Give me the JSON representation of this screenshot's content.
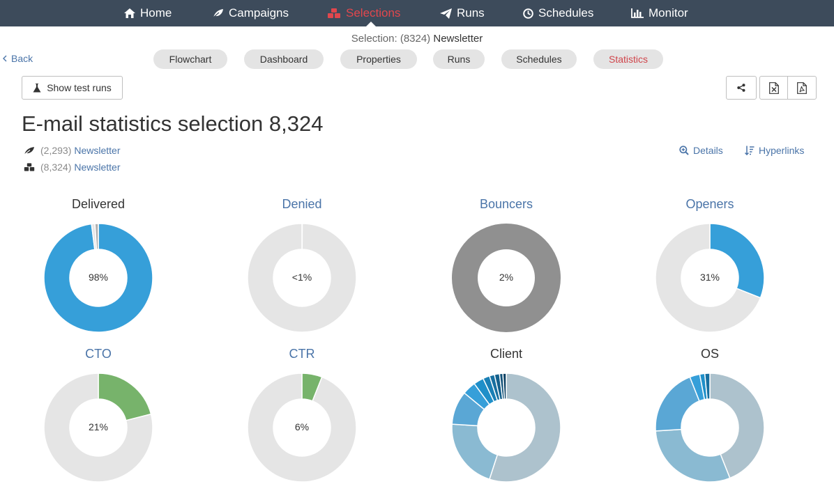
{
  "nav": {
    "items": [
      {
        "label": "Home",
        "icon": "home-icon"
      },
      {
        "label": "Campaigns",
        "icon": "leaf-icon"
      },
      {
        "label": "Selections",
        "icon": "cubes-icon"
      },
      {
        "label": "Runs",
        "icon": "paper-plane-icon"
      },
      {
        "label": "Schedules",
        "icon": "clock-icon"
      },
      {
        "label": "Monitor",
        "icon": "bar-chart-icon"
      }
    ],
    "active": "Selections",
    "active_color": "#e2474d",
    "background": "#3d4b5b"
  },
  "subheader": {
    "selection_prefix": "Selection: (8324)",
    "selection_name": "Newsletter",
    "back_label": "Back",
    "tabs": [
      "Flowchart",
      "Dashboard",
      "Properties",
      "Runs",
      "Schedules",
      "Statistics"
    ],
    "active_tab": "Statistics"
  },
  "toolbar": {
    "test_runs_label": "Show test runs",
    "share_icon": "share-icon",
    "excel_icon": "excel-file-icon",
    "pdf_icon": "pdf-file-icon"
  },
  "page": {
    "title": "E-mail statistics selection 8,324",
    "sources": [
      {
        "icon": "leaf-icon",
        "count": "(2,293)",
        "name": "Newsletter"
      },
      {
        "icon": "cubes-icon",
        "count": "(8,324)",
        "name": "Newsletter"
      }
    ],
    "details_label": "Details",
    "hyperlinks_label": "Hyperlinks"
  },
  "colors": {
    "link": "#4a74a8",
    "blue": "#369fd9",
    "grey_track": "#e5e5e5",
    "dark_grey": "#909090",
    "green": "#77b36b"
  },
  "chart_data": [
    {
      "type": "pie",
      "title": "Delivered",
      "label": "98%",
      "slices": [
        {
          "value": 98,
          "color": "#369fd9"
        },
        {
          "value": 1,
          "color": "#e5e5e5"
        },
        {
          "value": 1,
          "color": "#b0b0b0"
        }
      ]
    },
    {
      "type": "pie",
      "title": "Denied",
      "label": "<1%",
      "slices": [
        {
          "value": 0.1,
          "color": "#d0d0d0"
        },
        {
          "value": 99.9,
          "color": "#e5e5e5"
        }
      ]
    },
    {
      "type": "pie",
      "title": "Bouncers",
      "label": "2%",
      "slices": [
        {
          "value": 100,
          "color": "#909090"
        }
      ]
    },
    {
      "type": "pie",
      "title": "Openers",
      "label": "31%",
      "slices": [
        {
          "value": 31,
          "color": "#369fd9"
        },
        {
          "value": 69,
          "color": "#e5e5e5"
        }
      ]
    },
    {
      "type": "pie",
      "title": "CTO",
      "label": "21%",
      "slices": [
        {
          "value": 21,
          "color": "#77b36b"
        },
        {
          "value": 79,
          "color": "#e5e5e5"
        }
      ]
    },
    {
      "type": "pie",
      "title": "CTR",
      "label": "6%",
      "slices": [
        {
          "value": 6,
          "color": "#77b36b"
        },
        {
          "value": 94,
          "color": "#e5e5e5"
        }
      ]
    },
    {
      "type": "pie",
      "title": "Client",
      "label": "",
      "slices": [
        {
          "value": 55,
          "color": "#adc2cd"
        },
        {
          "value": 21,
          "color": "#8abad2"
        },
        {
          "value": 10,
          "color": "#5aa7d5"
        },
        {
          "value": 4,
          "color": "#369fd9"
        },
        {
          "value": 3,
          "color": "#1f8fc9"
        },
        {
          "value": 2,
          "color": "#1a7fb5"
        },
        {
          "value": 1.5,
          "color": "#176fa0"
        },
        {
          "value": 1.5,
          "color": "#14608c"
        },
        {
          "value": 1,
          "color": "#115178"
        },
        {
          "value": 1,
          "color": "#0e4264"
        }
      ]
    },
    {
      "type": "pie",
      "title": "OS",
      "label": "",
      "slices": [
        {
          "value": 44,
          "color": "#adc2cd"
        },
        {
          "value": 30,
          "color": "#8abad2"
        },
        {
          "value": 20,
          "color": "#5aa7d5"
        },
        {
          "value": 3,
          "color": "#369fd9"
        },
        {
          "value": 1.5,
          "color": "#1f8fc9"
        },
        {
          "value": 1.5,
          "color": "#176fa0"
        }
      ]
    }
  ]
}
